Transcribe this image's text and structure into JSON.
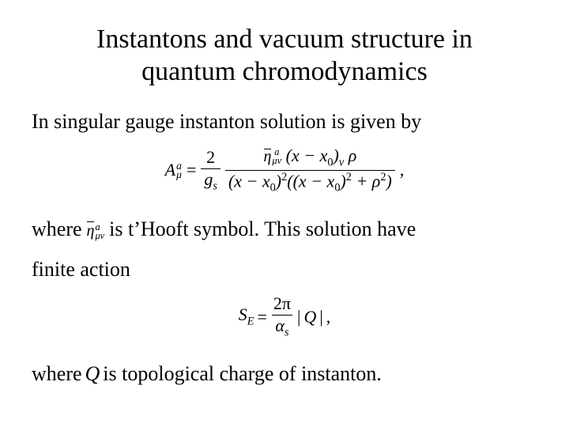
{
  "title_line1": "Instantons and vacuum structure in",
  "title_line2": "quantum chromodynamics",
  "p1": "In singular gauge instanton solution is given by",
  "eq1": {
    "lhs_A": "A",
    "lhs_sup": "a",
    "lhs_sub": "μ",
    "eq": "=",
    "coef_num": "2",
    "coef_den_g": "g",
    "coef_den_s": "s",
    "eta": "η",
    "eta_sup": "a",
    "eta_sub": "μν",
    "xx0": "(x − x",
    "zero": "0",
    "close_nu": ")",
    "nu": "ν",
    "rho": "ρ",
    "den_l": "(x − x",
    "den_l_close_sq": ")",
    "sq": "2",
    "den_mid": "((x − x",
    "plus": " + ρ",
    "den_close": ")",
    "comma": ","
  },
  "p2_a": "where ",
  "p2_b": " is t’Hooft symbol. This solution have",
  "p2_c": "finite action",
  "eq2": {
    "S": "S",
    "E": "E",
    "eq": "=",
    "num": "2π",
    "den_alpha": "α",
    "den_s": "s",
    "abs_l": "|",
    "Q": "Q",
    "abs_r": "|",
    "comma": ","
  },
  "p3_a": "where ",
  "p3_Q": "Q",
  "p3_b": " is topological charge of instanton.",
  "style": {
    "bg": "#ffffff",
    "fg": "#000000",
    "title_fontsize": 34,
    "body_fontsize": 26,
    "eq_fontsize": 22,
    "font_family": "Times New Roman"
  }
}
